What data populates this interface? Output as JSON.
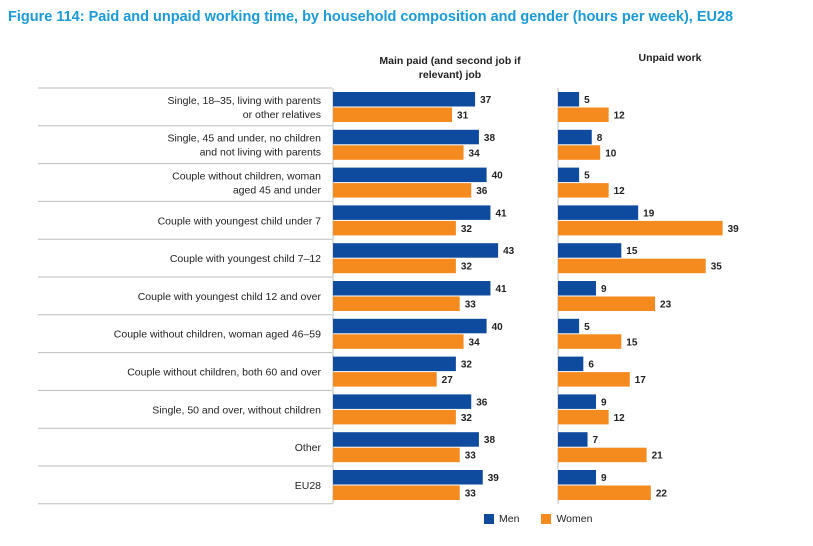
{
  "title": "Figure 114: Paid and unpaid working time, by household composition and gender (hours per week), EU28",
  "colors": {
    "title": "#1a9ad6",
    "men": "#0e4a9e",
    "women": "#f58a1f",
    "rule": "#bdbdbd"
  },
  "chart_data": {
    "type": "bar",
    "orientation": "horizontal",
    "categories": [
      [
        "Single, 18–35, living with parents",
        "or other relatives"
      ],
      [
        "Single, 45 and under, no children",
        "and not living with parents"
      ],
      [
        "Couple without children, woman",
        "aged 45 and under"
      ],
      [
        "Couple with youngest child under 7"
      ],
      [
        "Couple with youngest child 7–12"
      ],
      [
        "Couple with youngest child 12 and over"
      ],
      [
        "Couple without children, woman aged 46–59"
      ],
      [
        "Couple without children, both 60 and over"
      ],
      [
        "Single, 50 and over, without children"
      ],
      [
        "Other"
      ],
      [
        "EU28"
      ]
    ],
    "panels": [
      {
        "title": "Main paid (and second job if relevant) job",
        "series": [
          {
            "name": "Men",
            "values": [
              37,
              38,
              40,
              41,
              43,
              41,
              40,
              32,
              36,
              38,
              39
            ]
          },
          {
            "name": "Women",
            "values": [
              31,
              34,
              36,
              32,
              32,
              33,
              34,
              27,
              32,
              33,
              33
            ]
          }
        ]
      },
      {
        "title": "Unpaid work",
        "series": [
          {
            "name": "Men",
            "values": [
              5,
              8,
              5,
              19,
              15,
              9,
              5,
              6,
              9,
              7,
              9
            ]
          },
          {
            "name": "Women",
            "values": [
              12,
              10,
              12,
              39,
              35,
              23,
              15,
              17,
              12,
              21,
              22
            ]
          }
        ]
      }
    ],
    "legend": [
      "Men",
      "Women"
    ],
    "legend_position": "bottom"
  }
}
